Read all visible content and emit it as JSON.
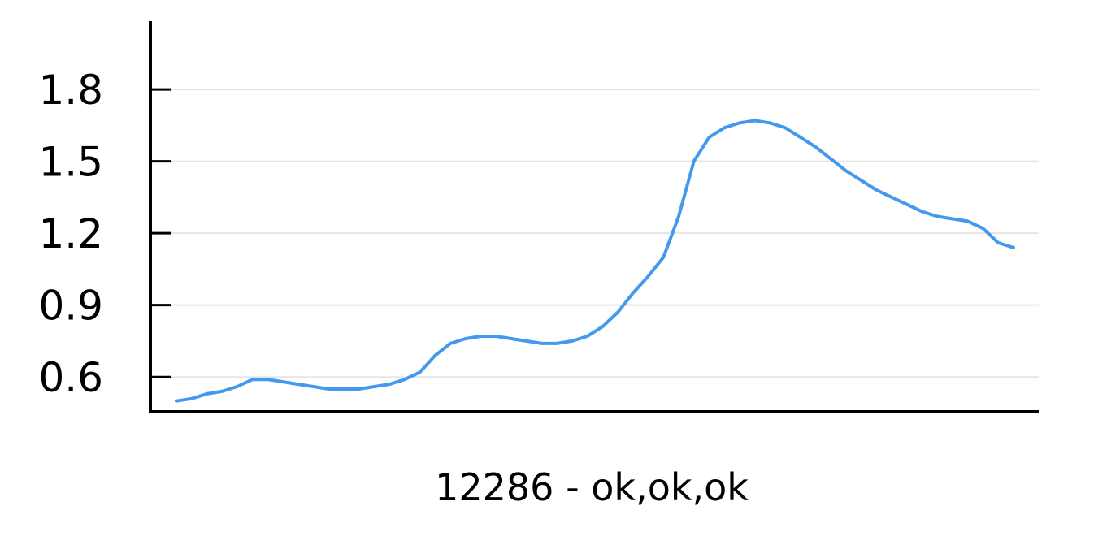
{
  "chart_data": {
    "type": "line",
    "title": "",
    "xlabel": "12286 - ok,ok,ok",
    "ylabel": "",
    "ylim": [
      0.455,
      2.085
    ],
    "yticks": [
      0.6,
      0.9,
      1.2,
      1.5,
      1.8
    ],
    "ytick_labels": [
      "0.6",
      "0.9",
      "1.2",
      "1.5",
      "1.8"
    ],
    "grid": "horizontal",
    "x_tick_labels": "none",
    "colors": {
      "line": "#4499ee",
      "grid": "#e5e5e5",
      "axis": "#000000"
    },
    "series": [
      {
        "values": [
          0.5,
          0.51,
          0.53,
          0.54,
          0.56,
          0.59,
          0.59,
          0.58,
          0.57,
          0.56,
          0.55,
          0.55,
          0.55,
          0.56,
          0.57,
          0.59,
          0.62,
          0.69,
          0.74,
          0.76,
          0.77,
          0.77,
          0.76,
          0.75,
          0.74,
          0.74,
          0.75,
          0.77,
          0.81,
          0.87,
          0.95,
          1.02,
          1.1,
          1.27,
          1.5,
          1.6,
          1.64,
          1.66,
          1.67,
          1.66,
          1.64,
          1.6,
          1.56,
          1.51,
          1.46,
          1.42,
          1.38,
          1.35,
          1.32,
          1.29,
          1.27,
          1.26,
          1.25,
          1.22,
          1.16,
          1.14
        ]
      }
    ]
  }
}
